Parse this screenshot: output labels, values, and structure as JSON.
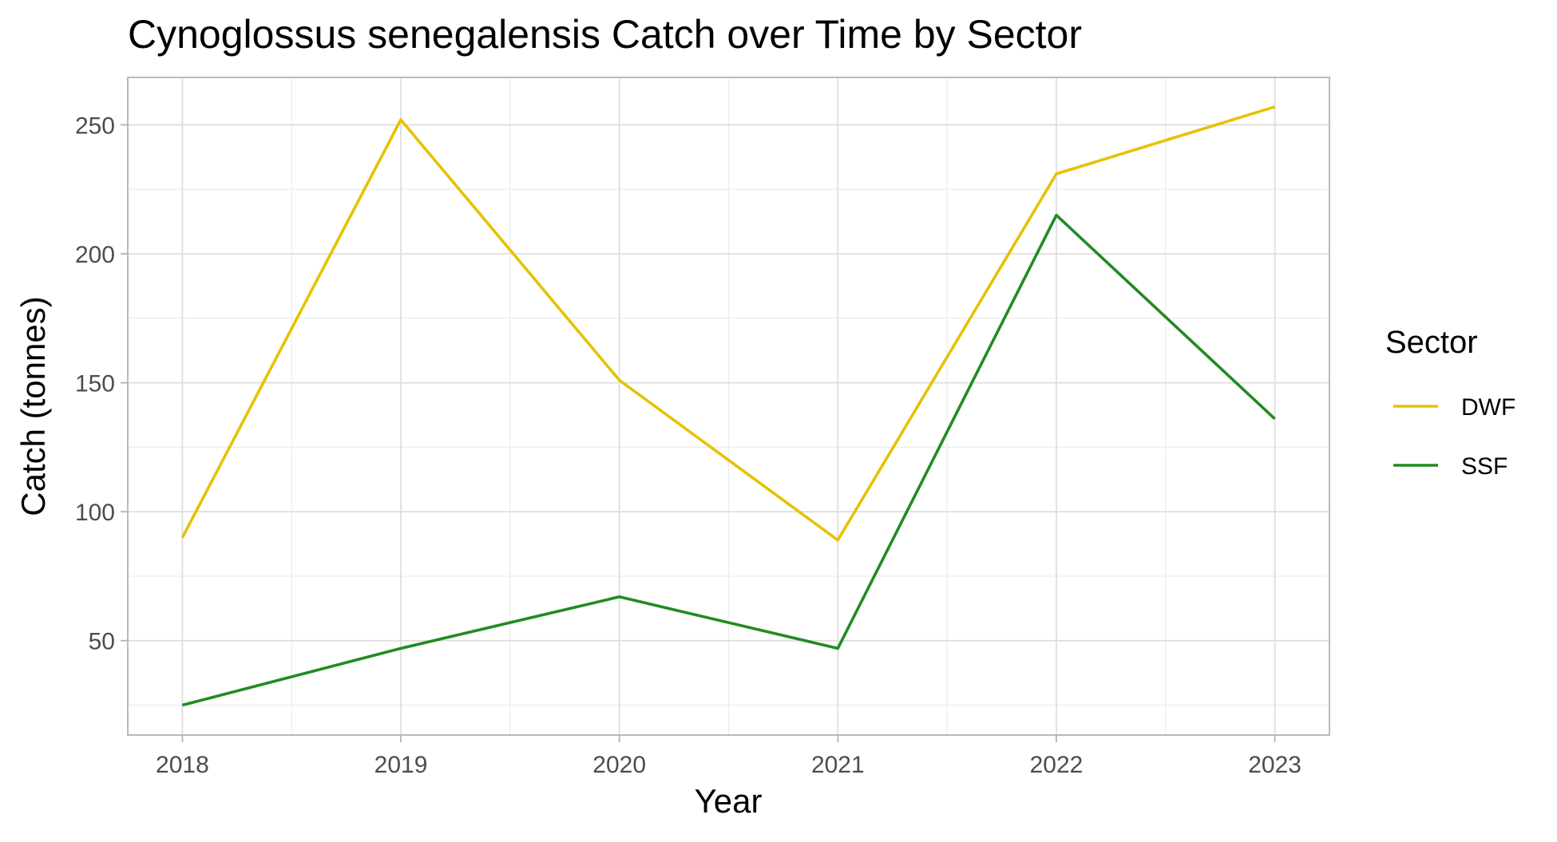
{
  "chart_data": {
    "type": "line",
    "title": "Cynoglossus senegalensis Catch over Time by Sector",
    "xlabel": "Year",
    "ylabel": "Catch (tonnes)",
    "x": [
      2018,
      2019,
      2020,
      2021,
      2022,
      2023
    ],
    "x_tick_labels": [
      "2018",
      "2019",
      "2020",
      "2021",
      "2022",
      "2023"
    ],
    "y_ticks": [
      50,
      100,
      150,
      200,
      250
    ],
    "y_tick_labels": [
      "50",
      "100",
      "150",
      "200",
      "250"
    ],
    "xlim": [
      2017.75,
      2023.25
    ],
    "ylim": [
      13.4,
      268.4
    ],
    "grid": true,
    "legend": {
      "title": "Sector",
      "position": "right"
    },
    "series": [
      {
        "name": "DWF",
        "color": "#e6c200",
        "values": [
          90,
          252,
          151,
          89,
          231,
          257
        ]
      },
      {
        "name": "SSF",
        "color": "#228b22",
        "values": [
          25,
          47,
          67,
          47,
          215,
          136
        ]
      }
    ]
  }
}
